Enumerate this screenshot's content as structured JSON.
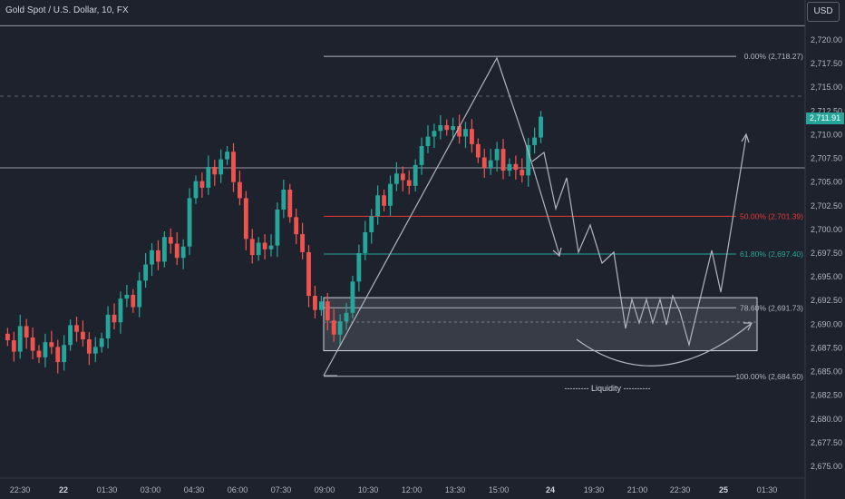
{
  "header": {
    "symbol_title": "Gold Spot / U.S. Dollar, 10, FX",
    "currency": "USD"
  },
  "price_tag": {
    "value": "2,711.91",
    "color": "#26a69a"
  },
  "colors": {
    "up": "#26a69a",
    "down": "#ef5350",
    "bg": "#1e222d",
    "line": "#b2b5be",
    "fib_red": "#e53935",
    "fib_teal": "#26a69a"
  },
  "chart_data": {
    "type": "candlestick",
    "ylim": [
      2672.5,
      2722.5
    ],
    "yticks": [
      "2,720.00",
      "2,717.50",
      "2,715.00",
      "2,712.50",
      "2,710.00",
      "2,707.50",
      "2,705.00",
      "2,702.50",
      "2,700.00",
      "2,697.50",
      "2,695.00",
      "2,692.50",
      "2,690.00",
      "2,687.50",
      "2,685.00",
      "2,682.50",
      "2,680.00",
      "2,677.50",
      "2,675.00"
    ],
    "xticks": [
      "22:30",
      "22",
      "01:30",
      "03:00",
      "04:30",
      "06:00",
      "07:30",
      "09:00",
      "10:30",
      "12:00",
      "13:30",
      "15:00",
      "24",
      "19:30",
      "21:00",
      "22:30",
      "25",
      "01:30"
    ],
    "candles_close": [
      2688.3,
      2687.1,
      2689.8,
      2688.6,
      2687.2,
      2686.5,
      2688.1,
      2687.6,
      2686.0,
      2687.8,
      2689.9,
      2689.2,
      2688.4,
      2686.9,
      2687.6,
      2688.5,
      2691.0,
      2690.2,
      2692.7,
      2693.1,
      2691.8,
      2694.6,
      2696.3,
      2697.8,
      2696.6,
      2699.2,
      2698.5,
      2697.0,
      2698.2,
      2703.3,
      2705.1,
      2704.4,
      2706.6,
      2705.8,
      2707.4,
      2708.2,
      2705.0,
      2703.3,
      2699.0,
      2697.3,
      2698.6,
      2697.9,
      2698.3,
      2702.1,
      2704.2,
      2701.3,
      2699.5,
      2697.6,
      2693.0,
      2691.5,
      2692.4,
      2690.4,
      2688.9,
      2690.3,
      2691.2,
      2694.5,
      2697.5,
      2699.7,
      2701.4,
      2703.6,
      2702.5,
      2704.8,
      2705.9,
      2705.2,
      2704.6,
      2706.8,
      2708.8,
      2709.8,
      2710.4,
      2711.0,
      2710.5,
      2710.9,
      2709.8,
      2710.6,
      2709.0,
      2707.6,
      2706.5,
      2707.3,
      2708.5,
      2706.2,
      2706.9,
      2706.3,
      2705.7,
      2708.9,
      2709.7,
      2711.9
    ],
    "horizontal_lines": [
      {
        "price": 2721.5
      },
      {
        "price": 2706.5
      }
    ],
    "fibonacci": [
      {
        "label": "0.00% (2,718.27)",
        "price": 2718.27,
        "color": "#b2b5be"
      },
      {
        "label": "50.00% (2,701.39)",
        "price": 2701.39,
        "color": "#e53935"
      },
      {
        "label": "61.80% (2,697.40)",
        "price": 2697.4,
        "color": "#26a69a"
      },
      {
        "label": "78.60% (2,691.73)",
        "price": 2691.73,
        "color": "#b2b5be"
      },
      {
        "label": "100.00% (2,684.50)",
        "price": 2684.5,
        "color": "#b2b5be"
      }
    ],
    "zone": {
      "top": 2692.8,
      "bottom": 2687.2
    },
    "annotation": "--------- Liquidity ----------"
  }
}
